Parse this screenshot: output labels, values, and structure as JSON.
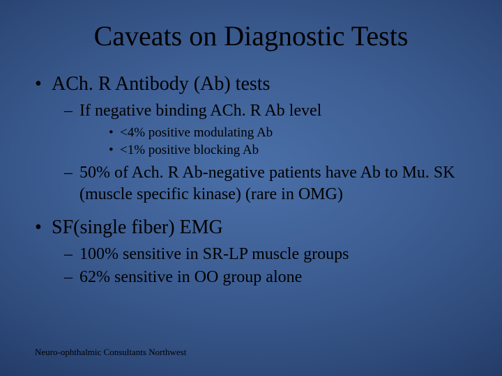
{
  "slide": {
    "title": "Caveats on Diagnostic Tests",
    "footer": "Neuro-ophthalmic Consultants Northwest",
    "background": {
      "gradient_center": "#4a6fa8",
      "gradient_mid": "#2e4a7a",
      "gradient_edge": "#14254a"
    },
    "typography": {
      "font_family": "Times New Roman",
      "title_fontsize": 40,
      "level1_fontsize": 28,
      "level2_fontsize": 24,
      "level3_fontsize": 19,
      "footer_fontsize": 13,
      "text_color": "#000000"
    },
    "bullets": {
      "b1": "ACh. R Antibody (Ab) tests",
      "b1_1": "If negative binding ACh. R Ab level",
      "b1_1_1": "<4% positive modulating Ab",
      "b1_1_2": "<1% positive blocking Ab",
      "b1_2": "50% of Ach. R Ab-negative patients have Ab to Mu. SK (muscle specific kinase) (rare in OMG)",
      "b2": "SF(single fiber) EMG",
      "b2_1": "100% sensitive in SR-LP muscle groups",
      "b2_2": "62% sensitive in OO group alone"
    }
  }
}
